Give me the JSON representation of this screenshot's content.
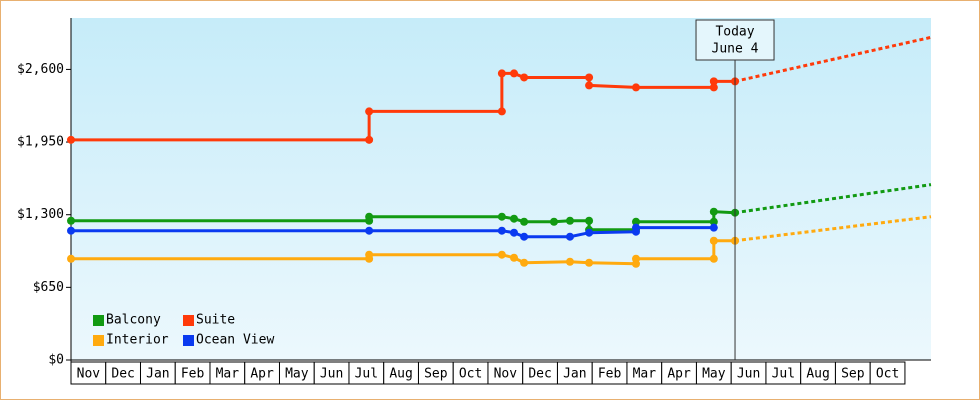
{
  "chart_data": {
    "type": "line",
    "categories": [
      "Nov",
      "Dec",
      "Jan",
      "Feb",
      "Mar",
      "Apr",
      "May",
      "Jun",
      "Jul",
      "Aug",
      "Sep",
      "Oct",
      "Nov",
      "Dec",
      "Jan",
      "Feb",
      "Mar",
      "Apr",
      "May",
      "Jun",
      "Jul",
      "Aug",
      "Sep",
      "Oct"
    ],
    "xlim": [
      0,
      24.75
    ],
    "ylim": [
      0,
      3060
    ],
    "yticks": [
      {
        "value": 0,
        "label": "$0"
      },
      {
        "value": 650,
        "label": "$650"
      },
      {
        "value": 1300,
        "label": "$1,300"
      },
      {
        "value": 1950,
        "label": "$1,950"
      },
      {
        "value": 2600,
        "label": "$2,600"
      }
    ],
    "today": {
      "x": 19.11,
      "label": [
        "Today",
        "June 4"
      ]
    },
    "legend": "lower-left",
    "series": [
      {
        "name": "Balcony",
        "color": "#129a12",
        "x": [
          0,
          8.58,
          8.58,
          12.4,
          12.75,
          13.04,
          13.9,
          14.36,
          14.91,
          14.91,
          16.26,
          16.26,
          18.5,
          18.5,
          19.11
        ],
        "values": [
          1246,
          1246,
          1282,
          1282,
          1264,
          1237,
          1237,
          1246,
          1246,
          1165,
          1165,
          1237,
          1237,
          1327,
          1318
        ],
        "projection": {
          "x": [
            19.11,
            24.75
          ],
          "values": [
            1318,
            1569
          ]
        }
      },
      {
        "name": "Suite",
        "color": "#ff3a0a",
        "x": [
          0,
          8.58,
          8.58,
          12.4,
          12.4,
          12.75,
          13.04,
          14.91,
          14.91,
          16.26,
          18.5,
          18.5,
          19.11
        ],
        "values": [
          1970,
          1970,
          2224,
          2224,
          2564,
          2564,
          2528,
          2528,
          2457,
          2439,
          2439,
          2493,
          2493
        ],
        "projection": {
          "x": [
            19.11,
            24.75
          ],
          "values": [
            2493,
            2887
          ]
        }
      },
      {
        "name": "Interior",
        "color": "#ffaa0f",
        "x": [
          0,
          8.58,
          8.58,
          12.4,
          12.75,
          13.04,
          14.36,
          14.91,
          16.26,
          16.26,
          18.5,
          18.5,
          19.11
        ],
        "values": [
          906,
          906,
          942,
          942,
          915,
          870,
          879,
          870,
          861,
          906,
          906,
          1067,
          1067
        ],
        "projection": {
          "x": [
            19.11,
            24.75
          ],
          "values": [
            1067,
            1282
          ]
        }
      },
      {
        "name": "Ocean View",
        "color": "#0a3af0",
        "x": [
          0,
          8.58,
          12.4,
          12.75,
          13.04,
          14.36,
          14.91,
          16.26,
          16.26,
          18.5
        ],
        "values": [
          1157,
          1157,
          1157,
          1139,
          1103,
          1103,
          1139,
          1148,
          1184,
          1184
        ]
      }
    ]
  }
}
